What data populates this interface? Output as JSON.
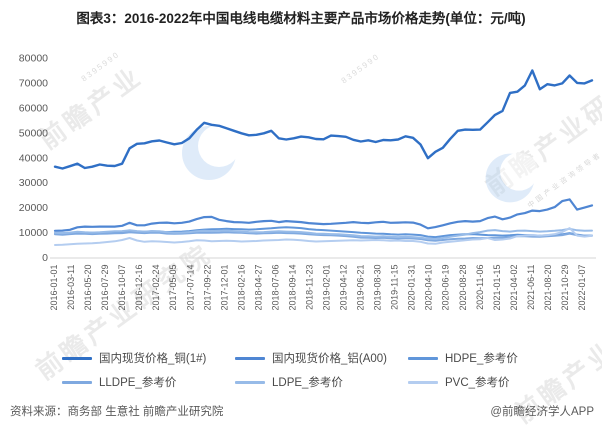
{
  "title": "图表3：2016-2022年中国电线电缆材料主要产品市场价格走势(单位：元/吨)",
  "footer": {
    "source": "资料来源：商务部 生意社 前瞻产业研究院",
    "credit": "@前瞻经济学人APP"
  },
  "watermark": {
    "name": "前瞻产业研究院",
    "name_fragment": "前瞻产业",
    "tagline": "中国产业咨询领导者",
    "digits": "8395990",
    "logo_color": "#b9d4f2"
  },
  "chart_data": {
    "type": "line",
    "unit": "元/吨",
    "x_resolution": "monthly",
    "x_start": "2016-01",
    "x_end": "2022-01",
    "x_tick_labels": [
      "2016-01-01",
      "2016-03-11",
      "2016-05-20",
      "2016-07-29",
      "2016-10-07",
      "2016-12-16",
      "2017-02-24",
      "2017-05-05",
      "2017-07-14",
      "2017-09-22",
      "2017-12-01",
      "2018-02-16",
      "2018-04-27",
      "2018-07-06",
      "2018-09-14",
      "2018-11-23",
      "2019-02-01",
      "2019-04-12",
      "2019-06-21",
      "2019-08-30",
      "2019-11-15",
      "2020-01-31",
      "2020-04-10",
      "2020-06-19",
      "2020-08-28",
      "2020-11-06",
      "2021-01-15",
      "2021-04-02",
      "2021-06-11",
      "2021-08-20",
      "2021-10-29",
      "2022-01-07"
    ],
    "ylim": [
      0,
      80000
    ],
    "y_ticks": [
      0,
      10000,
      20000,
      30000,
      40000,
      50000,
      60000,
      70000,
      80000
    ],
    "grid": false,
    "legend_position": "bottom",
    "axis_color": "#d6d6d6",
    "tick_label_color": "#595959",
    "series": [
      {
        "name": "国内现货价格_铜(1#)",
        "color": "#2f6fc5",
        "width": 2.4,
        "values": [
          36400,
          35700,
          36600,
          37600,
          35900,
          36400,
          37300,
          36800,
          36700,
          37600,
          43800,
          45600,
          45800,
          46600,
          46900,
          46100,
          45400,
          45900,
          47800,
          51200,
          54000,
          53200,
          52800,
          51800,
          50800,
          49800,
          49000,
          49200,
          49800,
          50800,
          47800,
          47300,
          47800,
          48500,
          48200,
          47500,
          47400,
          48900,
          48700,
          48400,
          47200,
          46500,
          47000,
          46300,
          47100,
          47000,
          47300,
          48600,
          48000,
          45300,
          39800,
          42400,
          44000,
          47600,
          50800,
          51300,
          51200,
          51300,
          54200,
          57200,
          58800,
          66000,
          66500,
          69000,
          75000,
          67500,
          69500,
          69000,
          69800,
          73000,
          70000,
          69800,
          71000
        ]
      },
      {
        "name": "国内现货价格_铝(A00)",
        "color": "#4f86d3",
        "width": 2.2,
        "values": [
          10700,
          10800,
          11100,
          12100,
          12400,
          12300,
          12400,
          12400,
          12400,
          12700,
          13900,
          12900,
          12900,
          13600,
          13900,
          14000,
          13700,
          13900,
          14400,
          15400,
          16200,
          16300,
          15100,
          14600,
          14200,
          14100,
          13900,
          14300,
          14600,
          14700,
          14200,
          14600,
          14400,
          14200,
          13800,
          13600,
          13400,
          13500,
          13700,
          13900,
          14200,
          13900,
          13800,
          14100,
          14300,
          13900,
          14000,
          14100,
          14000,
          13200,
          11700,
          12200,
          12900,
          13700,
          14300,
          14600,
          14400,
          14600,
          15800,
          16400,
          15300,
          16000,
          17300,
          17800,
          18800,
          18600,
          19200,
          20200,
          22600,
          23300,
          19200,
          20000,
          20900
        ]
      },
      {
        "name": "HDPE_参考价",
        "color": "#6096da",
        "width": 2,
        "values": [
          9800,
          9700,
          9900,
          10100,
          10000,
          9900,
          10000,
          10100,
          10200,
          10300,
          10600,
          10400,
          10300,
          10500,
          10400,
          10200,
          10300,
          10400,
          10600,
          10900,
          11200,
          11300,
          11400,
          11500,
          11400,
          11300,
          11200,
          11300,
          11500,
          11700,
          12000,
          12100,
          12000,
          11800,
          11400,
          11100,
          11000,
          10800,
          10600,
          10400,
          10200,
          9900,
          9800,
          9600,
          9500,
          9300,
          9200,
          9300,
          9200,
          9000,
          8400,
          8200,
          8600,
          9000,
          9200,
          9300,
          9400,
          9200,
          9000,
          8900,
          8800,
          8900,
          9100,
          9000,
          8900,
          8800,
          8900,
          9000,
          9300,
          9800,
          9200,
          8800,
          8800
        ]
      },
      {
        "name": "LLDPE_参考价",
        "color": "#7fa9e0",
        "width": 2,
        "values": [
          9300,
          9100,
          9400,
          9600,
          9500,
          9400,
          9500,
          9600,
          9700,
          9800,
          10100,
          9900,
          9800,
          10000,
          9900,
          9600,
          9500,
          9600,
          9700,
          9900,
          10000,
          9900,
          10000,
          10100,
          10000,
          9900,
          9700,
          9600,
          9700,
          9800,
          9900,
          9800,
          9700,
          9600,
          9300,
          9100,
          9000,
          8900,
          8800,
          8600,
          8300,
          8000,
          7900,
          7800,
          7900,
          7700,
          7600,
          7700,
          7600,
          7400,
          6900,
          6700,
          7000,
          7300,
          7500,
          7600,
          7800,
          7700,
          7800,
          7900,
          7900,
          8200,
          8600,
          8500,
          8400,
          8300,
          8500,
          8700,
          9000,
          9600,
          9000,
          8800,
          8800
        ]
      },
      {
        "name": "LDPE_参考价",
        "color": "#97bbe8",
        "width": 2,
        "values": [
          9900,
          9700,
          10000,
          10300,
          10100,
          10000,
          10100,
          10300,
          10500,
          10600,
          10900,
          10600,
          10400,
          10600,
          10500,
          10100,
          9900,
          10000,
          10200,
          10500,
          10700,
          10600,
          10700,
          10800,
          10600,
          10400,
          10200,
          10100,
          10200,
          10400,
          10500,
          10400,
          10300,
          10200,
          9900,
          9600,
          9500,
          9400,
          9300,
          9100,
          8900,
          8600,
          8500,
          8400,
          8500,
          8300,
          8200,
          8300,
          8200,
          8000,
          7500,
          7400,
          7800,
          8300,
          8800,
          9200,
          9800,
          10200,
          10800,
          11000,
          10600,
          10400,
          10700,
          10800,
          10600,
          10400,
          10500,
          10700,
          11000,
          11500,
          10900,
          10700,
          10800
        ]
      },
      {
        "name": "PVC_参考价",
        "color": "#b4cdf0",
        "width": 2,
        "values": [
          5000,
          5100,
          5300,
          5500,
          5600,
          5700,
          5900,
          6200,
          6500,
          7000,
          7800,
          6800,
          6300,
          6500,
          6400,
          6200,
          6000,
          6200,
          6500,
          6900,
          6800,
          6500,
          6600,
          6700,
          6600,
          6400,
          6500,
          6600,
          6800,
          6900,
          7000,
          7200,
          7100,
          6900,
          6600,
          6400,
          6500,
          6600,
          6700,
          6800,
          6900,
          6800,
          6900,
          7000,
          6900,
          6700,
          6800,
          6600,
          6600,
          6300,
          5600,
          5500,
          6000,
          6300,
          6600,
          6900,
          7200,
          7300,
          7800,
          7000,
          7200,
          7600,
          8600,
          8800,
          9000,
          8800,
          9000,
          9400,
          10200,
          11800,
          8800,
          8400,
          8700
        ]
      }
    ]
  }
}
